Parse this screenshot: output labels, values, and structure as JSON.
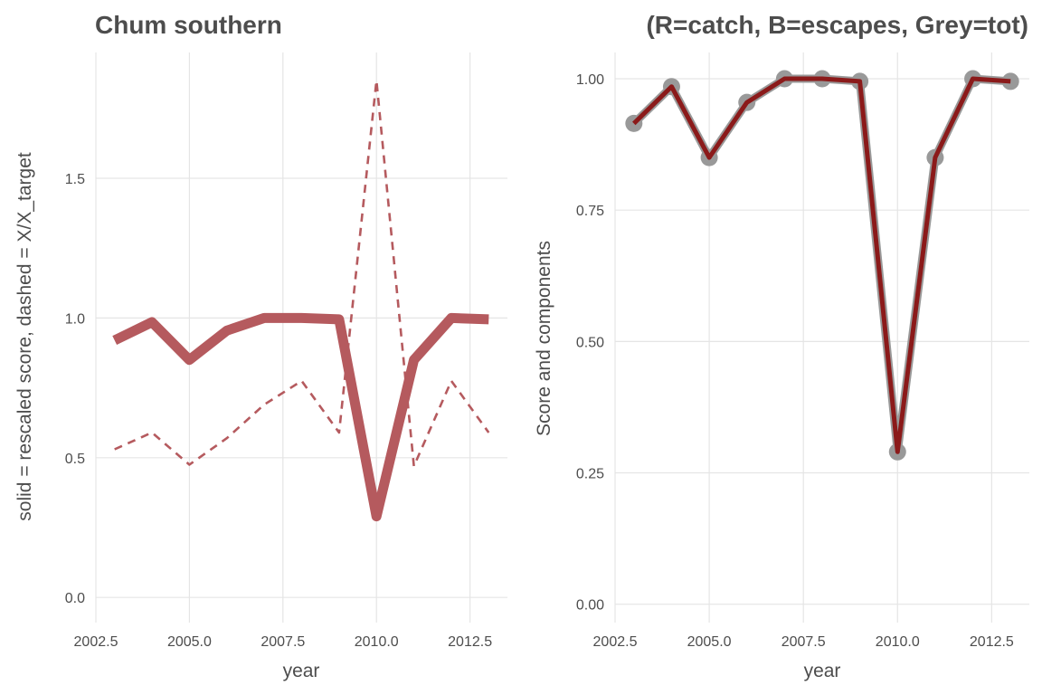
{
  "chart_data": [
    {
      "type": "line",
      "title": "Chum southern",
      "xlabel": "year",
      "ylabel": "solid = rescaled score, dashed = X/X_target",
      "xlim": [
        2002.5,
        2013.5
      ],
      "ylim": [
        -0.09,
        1.95
      ],
      "xticks": [
        2002.5,
        2005.0,
        2007.5,
        2010.0,
        2012.5
      ],
      "xtick_labels": [
        "2002.5",
        "2005.0",
        "2007.5",
        "2010.0",
        "2012.5"
      ],
      "yticks": [
        0.0,
        0.5,
        1.0,
        1.5
      ],
      "ytick_labels": [
        "0.0",
        "0.5",
        "1.0",
        "1.5"
      ],
      "grid": true,
      "x": [
        2003,
        2004,
        2005,
        2006,
        2007,
        2008,
        2009,
        2010,
        2011,
        2012,
        2013
      ],
      "series": [
        {
          "style": "solid",
          "color": "#b55a5e",
          "values": [
            0.92,
            0.985,
            0.85,
            0.955,
            1.0,
            1.0,
            0.995,
            0.29,
            0.85,
            1.0,
            0.995
          ]
        },
        {
          "style": "dashed",
          "color": "#b55a5e",
          "values": [
            0.53,
            0.59,
            0.475,
            0.57,
            0.69,
            0.775,
            0.59,
            1.85,
            0.47,
            0.775,
            0.59
          ]
        }
      ]
    },
    {
      "type": "line",
      "title": "(R=catch, B=escapes, Grey=tot)",
      "xlabel": "year",
      "ylabel": "Score and components",
      "xlim": [
        2002.5,
        2013.5
      ],
      "ylim": [
        -0.035,
        1.05
      ],
      "xticks": [
        2002.5,
        2005.0,
        2007.5,
        2010.0,
        2012.5
      ],
      "xtick_labels": [
        "2002.5",
        "2005.0",
        "2007.5",
        "2010.0",
        "2012.5"
      ],
      "yticks": [
        0.0,
        0.25,
        0.5,
        0.75,
        1.0
      ],
      "ytick_labels": [
        "0.00",
        "0.25",
        "0.50",
        "0.75",
        "1.00"
      ],
      "grid": true,
      "x": [
        2003,
        2004,
        2005,
        2006,
        2007,
        2008,
        2009,
        2010,
        2011,
        2012,
        2013
      ],
      "series": [
        {
          "style": "line-points",
          "color": "#999999",
          "values": [
            0.915,
            0.985,
            0.85,
            0.955,
            1.0,
            1.0,
            0.995,
            0.29,
            0.85,
            1.0,
            0.995
          ]
        },
        {
          "style": "line",
          "color": "#8b1a1a",
          "values": [
            0.915,
            0.985,
            0.85,
            0.955,
            1.0,
            1.0,
            0.995,
            0.29,
            0.85,
            1.0,
            0.995
          ]
        }
      ]
    }
  ]
}
